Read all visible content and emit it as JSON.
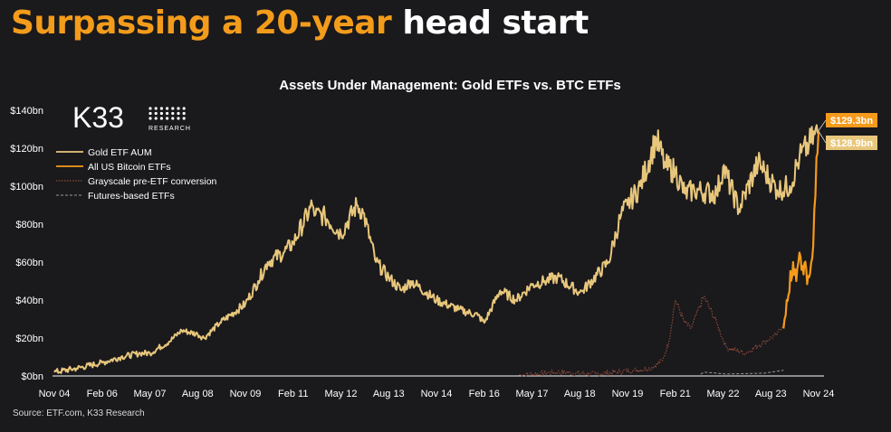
{
  "headline": {
    "accent": "Surpassing a 20-year",
    "rest": "head start"
  },
  "logo": {
    "name": "K33",
    "sub": "RESEARCH"
  },
  "source": "Source: ETF.com, K33 Research",
  "chart_data": {
    "type": "line",
    "title": "Assets Under Management: Gold ETFs vs. BTC ETFs",
    "xlabel": "",
    "ylabel": "",
    "x_tick_labels": [
      "Nov 04",
      "Feb 06",
      "May 07",
      "Aug 08",
      "Nov 09",
      "Feb 11",
      "May 12",
      "Aug 13",
      "Nov 14",
      "Feb 16",
      "May 17",
      "Aug 18",
      "Nov 19",
      "Feb 21",
      "May 22",
      "Aug 23",
      "Nov 24"
    ],
    "y_tick_labels": [
      "$0bn",
      "$20bn",
      "$40bn",
      "$60bn",
      "$80bn",
      "$100bn",
      "$120bn",
      "$140bn"
    ],
    "ylim": [
      0,
      140
    ],
    "grid": false,
    "legend_position": "top-left",
    "colors": {
      "gold": "#e8c77c",
      "btc": "#f59a1b",
      "grayscale": "#8a4a3a",
      "futures": "#9a9a9a",
      "background": "#1a191c"
    },
    "series": [
      {
        "name": "Gold ETF AUM",
        "style": "solid",
        "x": [
          "2004-11",
          "2005-06",
          "2006-02",
          "2006-08",
          "2007-02",
          "2007-05",
          "2007-11",
          "2008-03",
          "2008-08",
          "2008-10",
          "2009-03",
          "2009-11",
          "2010-03",
          "2010-06",
          "2010-11",
          "2011-02",
          "2011-08",
          "2011-09",
          "2011-12",
          "2012-05",
          "2012-10",
          "2012-12",
          "2013-04",
          "2013-08",
          "2013-12",
          "2014-03",
          "2014-11",
          "2015-06",
          "2015-12",
          "2016-02",
          "2016-07",
          "2016-12",
          "2017-05",
          "2017-09",
          "2018-01",
          "2018-08",
          "2018-09",
          "2019-05",
          "2019-09",
          "2019-11",
          "2020-03",
          "2020-08",
          "2020-11",
          "2021-02",
          "2021-05",
          "2021-08",
          "2022-03",
          "2022-05",
          "2022-10",
          "2023-04",
          "2023-06",
          "2023-10",
          "2024-02",
          "2024-05",
          "2024-08",
          "2024-11"
        ],
        "values": [
          2,
          4,
          7,
          10,
          12,
          12,
          18,
          24,
          22,
          20,
          28,
          38,
          50,
          60,
          65,
          70,
          90,
          85,
          84,
          75,
          90,
          86,
          60,
          52,
          45,
          50,
          40,
          35,
          32,
          28,
          45,
          40,
          48,
          50,
          52,
          44,
          45,
          60,
          85,
          90,
          100,
          125,
          110,
          108,
          96,
          98,
          96,
          110,
          88,
          112,
          108,
          98,
          100,
          115,
          122,
          129.3
        ]
      },
      {
        "name": "All US Bitcoin ETFs",
        "style": "solid",
        "x": [
          "2023-12",
          "2024-01",
          "2024-03",
          "2024-04",
          "2024-05",
          "2024-06",
          "2024-08",
          "2024-09",
          "2024-10",
          "2024-11"
        ],
        "values": [
          25,
          40,
          60,
          50,
          65,
          58,
          52,
          62,
          95,
          128.9
        ]
      },
      {
        "name": "Grayscale pre-ETF conversion",
        "style": "dotted",
        "x": [
          "2017-01",
          "2018-01",
          "2019-01",
          "2020-01",
          "2020-06",
          "2020-10",
          "2020-12",
          "2021-02",
          "2021-05",
          "2021-07",
          "2021-11",
          "2022-03",
          "2022-06",
          "2022-12",
          "2023-06",
          "2023-10",
          "2023-12"
        ],
        "values": [
          0.5,
          2,
          1,
          3,
          4,
          8,
          18,
          40,
          28,
          25,
          42,
          28,
          15,
          12,
          18,
          22,
          28
        ]
      },
      {
        "name": "Futures-based ETFs",
        "style": "dashed",
        "x": [
          "2021-10",
          "2021-11",
          "2022-03",
          "2022-06",
          "2023-06",
          "2023-12"
        ],
        "values": [
          1,
          2,
          1.5,
          1,
          1.5,
          3
        ]
      }
    ],
    "labels": {
      "gold_end": "$129.3bn",
      "btc_end": "$128.9bn"
    }
  }
}
